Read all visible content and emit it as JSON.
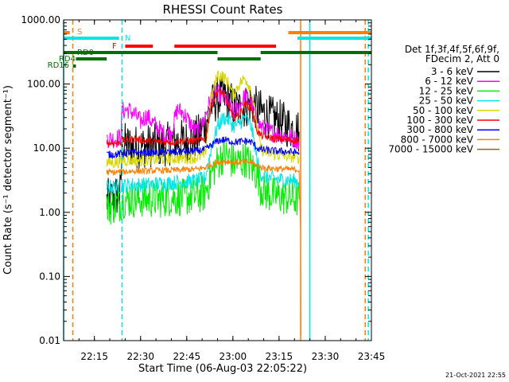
{
  "chart_data": {
    "type": "line",
    "title": "RHESSI Count Rates",
    "xlabel": "Start Time (06-Aug-03 22:05:22)",
    "ylabel": "Count Rate (s⁻¹ detector segment⁻¹)",
    "yscale": "log",
    "xlim": [
      "22:05",
      "23:45"
    ],
    "ylim": [
      0.01,
      1000
    ],
    "x_ticks": [
      "22:15",
      "22:30",
      "22:45",
      "23:00",
      "23:15",
      "23:30",
      "23:45"
    ],
    "y_ticks": [
      "0.01",
      "0.10",
      "1.00",
      "10.00",
      "100.00",
      "1000.00"
    ],
    "legend": {
      "placement": "right",
      "header": [
        "Det 1f,3f,4f,5f,6f,9f,",
        "FDecim 2, Att 0"
      ],
      "entries": [
        {
          "label": "3 - 6 keV",
          "color": "#000000"
        },
        {
          "label": "6 - 12 keV",
          "color": "#ff00ff"
        },
        {
          "label": "12 - 25 keV",
          "color": "#00ee00"
        },
        {
          "label": "25 - 50 keV",
          "color": "#00e5e5"
        },
        {
          "label": "50 - 100 keV",
          "color": "#d7d700"
        },
        {
          "label": "100 - 300 keV",
          "color": "#ff0000"
        },
        {
          "label": "300 - 800 keV",
          "color": "#0000ff"
        },
        {
          "label": "800 - 7000 keV",
          "color": "#ff8000"
        },
        {
          "label": "7000 - 15000 keV",
          "color": "#8b6914"
        }
      ]
    },
    "bar_labels": [
      {
        "label": "S",
        "color": "#ff8000"
      },
      {
        "label": "N",
        "color": "#00e5e5"
      },
      {
        "label": "F",
        "color": "#ff0000"
      },
      {
        "label": "RD0",
        "color": "#007000"
      },
      {
        "label": "RD4",
        "color": "#007000"
      },
      {
        "label": "RD16",
        "color": "#007000"
      }
    ],
    "flag_bars": [
      {
        "name": "S",
        "color": "#ff8000",
        "segments": [
          [
            "22:05",
            "22:07"
          ],
          [
            "23:18",
            "23:45"
          ]
        ]
      },
      {
        "name": "N",
        "color": "#00e5e5",
        "segments": [
          [
            "22:05",
            "22:23"
          ],
          [
            "23:21",
            "23:45"
          ]
        ]
      },
      {
        "name": "F",
        "color": "#ff0000",
        "segments": [
          [
            "22:25",
            "22:34"
          ],
          [
            "22:41",
            "23:14"
          ]
        ]
      },
      {
        "name": "RD0",
        "color": "#007000",
        "segments": [
          [
            "22:05",
            "22:55"
          ],
          [
            "23:09",
            "23:45"
          ]
        ]
      },
      {
        "name": "RD4",
        "color": "#007000",
        "segments": [
          [
            "22:09",
            "22:19"
          ],
          [
            "22:55",
            "23:09"
          ]
        ]
      },
      {
        "name": "RD16",
        "color": "#007000",
        "segments": [
          [
            "22:08",
            "22:09"
          ]
        ]
      }
    ],
    "vlines": [
      {
        "x": "22:05",
        "color": "#00e5e5",
        "style": "solid"
      },
      {
        "x": "22:08",
        "color": "#ff8000",
        "style": "dashed"
      },
      {
        "x": "22:24",
        "color": "#00e5e5",
        "style": "dashed"
      },
      {
        "x": "23:22",
        "color": "#ff8000",
        "style": "solid"
      },
      {
        "x": "23:25",
        "color": "#00e5e5",
        "style": "solid"
      },
      {
        "x": "23:43",
        "color": "#ff8000",
        "style": "dashed"
      },
      {
        "x": "23:44",
        "color": "#00e5e5",
        "style": "dashed"
      }
    ],
    "series": [
      {
        "name": "3 - 6 keV",
        "color": "#000000",
        "noise": 0.35,
        "points": [
          [
            "22:19",
            1.5
          ],
          [
            "22:22",
            1.8
          ],
          [
            "22:23.5",
            2.0
          ],
          [
            "22:24",
            12
          ],
          [
            "22:26",
            11
          ],
          [
            "22:28",
            10.5
          ],
          [
            "22:30",
            10.5
          ],
          [
            "22:33",
            11
          ],
          [
            "22:36",
            11
          ],
          [
            "22:40",
            12
          ],
          [
            "22:43",
            13
          ],
          [
            "22:46",
            12.5
          ],
          [
            "22:49",
            16
          ],
          [
            "22:51",
            24
          ],
          [
            "22:53",
            45
          ],
          [
            "22:55",
            60
          ],
          [
            "22:57",
            65
          ],
          [
            "22:59",
            55
          ],
          [
            "23:00",
            45
          ],
          [
            "23:02",
            40
          ],
          [
            "23:04",
            45
          ],
          [
            "23:06",
            50
          ],
          [
            "23:08",
            40
          ],
          [
            "23:10",
            35
          ],
          [
            "23:12",
            30
          ],
          [
            "23:14",
            28
          ],
          [
            "23:16",
            25
          ],
          [
            "23:18",
            22
          ],
          [
            "23:20",
            20
          ],
          [
            "23:21.5",
            18
          ]
        ]
      },
      {
        "name": "6 - 12 keV",
        "color": "#ff00ff",
        "noise": 0.15,
        "points": [
          [
            "22:19",
            14
          ],
          [
            "22:22",
            14
          ],
          [
            "22:23.5",
            15
          ],
          [
            "22:24",
            38
          ],
          [
            "22:26",
            40
          ],
          [
            "22:28",
            34
          ],
          [
            "22:30",
            26
          ],
          [
            "22:32",
            32
          ],
          [
            "22:34",
            25
          ],
          [
            "22:36",
            20
          ],
          [
            "22:38",
            16
          ],
          [
            "22:40",
            18
          ],
          [
            "22:42",
            40
          ],
          [
            "22:44",
            35
          ],
          [
            "22:46",
            25
          ],
          [
            "22:48",
            18
          ],
          [
            "22:50",
            22
          ],
          [
            "22:52",
            45
          ],
          [
            "22:54",
            80
          ],
          [
            "22:56",
            65
          ],
          [
            "22:58",
            55
          ],
          [
            "23:00",
            35
          ],
          [
            "23:02",
            45
          ],
          [
            "23:04",
            65
          ],
          [
            "23:06",
            50
          ],
          [
            "23:08",
            25
          ],
          [
            "23:10",
            20
          ],
          [
            "23:12",
            18
          ],
          [
            "23:14",
            17
          ],
          [
            "23:16",
            16
          ],
          [
            "23:18",
            15
          ],
          [
            "23:20",
            14
          ],
          [
            "23:21.5",
            13
          ]
        ]
      },
      {
        "name": "12 - 25 keV",
        "color": "#00ee00",
        "noise": 0.3,
        "points": [
          [
            "22:19",
            1.2
          ],
          [
            "22:22",
            1.3
          ],
          [
            "22:23.5",
            1.4
          ],
          [
            "22:24",
            1.6
          ],
          [
            "22:28",
            1.6
          ],
          [
            "22:32",
            1.6
          ],
          [
            "22:36",
            1.6
          ],
          [
            "22:40",
            1.7
          ],
          [
            "22:44",
            1.7
          ],
          [
            "22:48",
            1.8
          ],
          [
            "22:51",
            2.0
          ],
          [
            "22:53",
            4
          ],
          [
            "22:55",
            6
          ],
          [
            "22:57",
            8
          ],
          [
            "22:59",
            7
          ],
          [
            "23:00",
            6
          ],
          [
            "23:02",
            6
          ],
          [
            "23:04",
            7
          ],
          [
            "23:06",
            5
          ],
          [
            "23:08",
            4
          ],
          [
            "23:09",
            2.5
          ],
          [
            "23:11",
            2
          ],
          [
            "23:14",
            1.8
          ],
          [
            "23:18",
            1.7
          ],
          [
            "23:21.5",
            1.6
          ]
        ]
      },
      {
        "name": "25 - 50 keV",
        "color": "#00e5e5",
        "noise": 0.12,
        "points": [
          [
            "22:19",
            2.5
          ],
          [
            "22:22",
            2.5
          ],
          [
            "22:23.5",
            2.6
          ],
          [
            "22:24",
            2.6
          ],
          [
            "22:28",
            2.7
          ],
          [
            "22:32",
            2.7
          ],
          [
            "22:36",
            2.8
          ],
          [
            "22:40",
            2.9
          ],
          [
            "22:44",
            3.0
          ],
          [
            "22:48",
            3.1
          ],
          [
            "22:51",
            3.4
          ],
          [
            "22:53",
            10
          ],
          [
            "22:55",
            22
          ],
          [
            "22:57",
            30
          ],
          [
            "22:59",
            27
          ],
          [
            "23:00",
            22
          ],
          [
            "23:02",
            24
          ],
          [
            "23:04",
            30
          ],
          [
            "23:06",
            22
          ],
          [
            "23:08",
            6
          ],
          [
            "23:09",
            4
          ],
          [
            "23:11",
            3.5
          ],
          [
            "23:14",
            3.3
          ],
          [
            "23:18",
            3.2
          ],
          [
            "23:21.5",
            3.0
          ]
        ]
      },
      {
        "name": "50 - 100 keV",
        "color": "#d7d700",
        "noise": 0.1,
        "points": [
          [
            "22:19",
            6
          ],
          [
            "22:22",
            6
          ],
          [
            "22:23.5",
            6.2
          ],
          [
            "22:24",
            6.5
          ],
          [
            "22:28",
            6.5
          ],
          [
            "22:32",
            6.6
          ],
          [
            "22:36",
            6.8
          ],
          [
            "22:40",
            7
          ],
          [
            "22:44",
            7
          ],
          [
            "22:48",
            7.2
          ],
          [
            "22:51",
            8
          ],
          [
            "22:53",
            60
          ],
          [
            "22:55",
            140
          ],
          [
            "22:57",
            130
          ],
          [
            "22:59",
            95
          ],
          [
            "23:00",
            65
          ],
          [
            "23:02",
            100
          ],
          [
            "23:04",
            125
          ],
          [
            "23:06",
            80
          ],
          [
            "23:08",
            20
          ],
          [
            "23:09",
            10
          ],
          [
            "23:11",
            8.5
          ],
          [
            "23:14",
            8
          ],
          [
            "23:18",
            7.5
          ],
          [
            "23:21.5",
            7.2
          ]
        ]
      },
      {
        "name": "100 - 300 keV",
        "color": "#ff0000",
        "noise": 0.06,
        "points": [
          [
            "22:19",
            12
          ],
          [
            "22:22",
            12
          ],
          [
            "22:23.5",
            12.5
          ],
          [
            "22:24",
            13
          ],
          [
            "22:28",
            14
          ],
          [
            "22:32",
            13
          ],
          [
            "22:36",
            12.5
          ],
          [
            "22:40",
            12.5
          ],
          [
            "22:44",
            13
          ],
          [
            "22:48",
            13
          ],
          [
            "22:51",
            14
          ],
          [
            "22:53",
            45
          ],
          [
            "22:55",
            78
          ],
          [
            "22:57",
            70
          ],
          [
            "22:59",
            42
          ],
          [
            "23:00",
            30
          ],
          [
            "23:02",
            32
          ],
          [
            "23:04",
            50
          ],
          [
            "23:06",
            42
          ],
          [
            "23:08",
            18
          ],
          [
            "23:09",
            16
          ],
          [
            "23:11",
            15
          ],
          [
            "23:14",
            14
          ],
          [
            "23:18",
            13.5
          ],
          [
            "23:21.5",
            13
          ]
        ]
      },
      {
        "name": "300 - 800 keV",
        "color": "#0000ff",
        "noise": 0.06,
        "points": [
          [
            "22:19",
            8
          ],
          [
            "22:22",
            8
          ],
          [
            "22:23.5",
            8.2
          ],
          [
            "22:24",
            8.5
          ],
          [
            "22:28",
            8.5
          ],
          [
            "22:32",
            8.5
          ],
          [
            "22:36",
            8.5
          ],
          [
            "22:40",
            8.7
          ],
          [
            "22:44",
            8.8
          ],
          [
            "22:48",
            9
          ],
          [
            "22:51",
            9.5
          ],
          [
            "22:53",
            11
          ],
          [
            "22:55",
            13
          ],
          [
            "22:57",
            13.5
          ],
          [
            "22:59",
            13
          ],
          [
            "23:00",
            12.5
          ],
          [
            "23:02",
            12.5
          ],
          [
            "23:04",
            13
          ],
          [
            "23:06",
            12.5
          ],
          [
            "23:08",
            10
          ],
          [
            "23:09",
            9.5
          ],
          [
            "23:11",
            9.3
          ],
          [
            "23:14",
            9
          ],
          [
            "23:18",
            8.8
          ],
          [
            "23:21.5",
            8.5
          ]
        ]
      },
      {
        "name": "800 - 7000 keV",
        "color": "#ff8000",
        "noise": 0.05,
        "points": [
          [
            "22:19",
            4.2
          ],
          [
            "22:22",
            4.2
          ],
          [
            "22:23.5",
            4.3
          ],
          [
            "22:24",
            4.3
          ],
          [
            "22:28",
            4.4
          ],
          [
            "22:32",
            4.4
          ],
          [
            "22:36",
            4.5
          ],
          [
            "22:40",
            4.5
          ],
          [
            "22:44",
            4.6
          ],
          [
            "22:48",
            4.7
          ],
          [
            "22:51",
            5.0
          ],
          [
            "22:53",
            5.5
          ],
          [
            "22:55",
            6.0
          ],
          [
            "22:57",
            6.2
          ],
          [
            "22:59",
            6.2
          ],
          [
            "23:00",
            6.0
          ],
          [
            "23:02",
            6.0
          ],
          [
            "23:04",
            6.1
          ],
          [
            "23:06",
            6.0
          ],
          [
            "23:08",
            5.3
          ],
          [
            "23:09",
            5.0
          ],
          [
            "23:11",
            4.9
          ],
          [
            "23:14",
            4.8
          ],
          [
            "23:18",
            4.7
          ],
          [
            "23:21.5",
            4.6
          ],
          [
            "23:22",
            0.5
          ],
          [
            "23:22.1",
            0.012
          ]
        ]
      }
    ],
    "footer_timestamp": "21-Oct-2021 22:55"
  }
}
